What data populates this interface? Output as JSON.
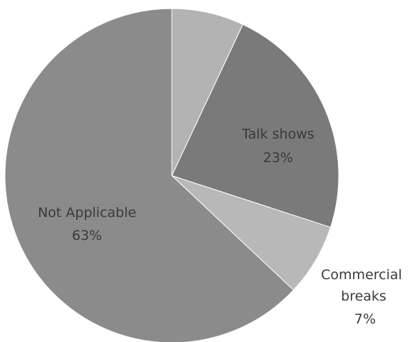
{
  "chart_data": {
    "type": "pie",
    "title": "",
    "start_angle_deg": 0,
    "direction": "clockwise",
    "slices": [
      {
        "label": "",
        "percent_text": "",
        "value": 7,
        "color": "#b3b3b3"
      },
      {
        "label": "Talk shows",
        "percent_text": "23%",
        "value": 23,
        "color": "#7a7a7a"
      },
      {
        "label": "Commercial breaks",
        "percent_text": "7%",
        "value": 7,
        "color": "#b8b8b8"
      },
      {
        "label": "Not Applicable",
        "percent_text": "63%",
        "value": 63,
        "color": "#8b8b8b"
      }
    ]
  }
}
